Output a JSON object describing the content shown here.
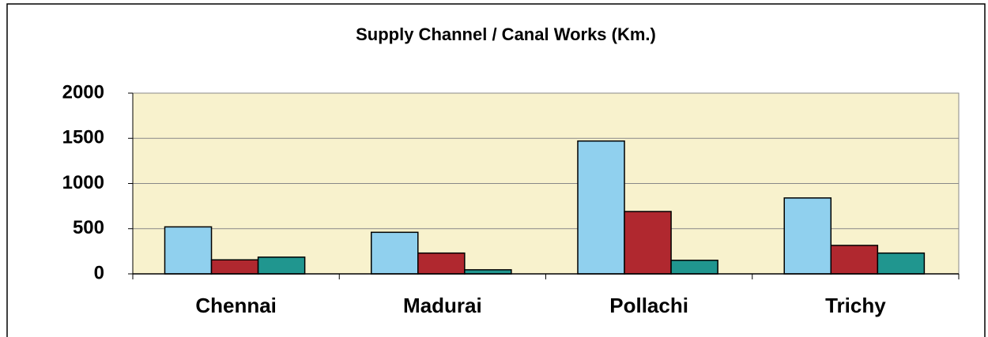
{
  "chart_data": {
    "type": "bar",
    "title": "Supply Channel / Canal Works (Km.)",
    "categories": [
      "Chennai",
      "Madurai",
      "Pollachi",
      "Trichy"
    ],
    "series": [
      {
        "color": "#90d0ee",
        "values": [
          520,
          460,
          1470,
          840
        ]
      },
      {
        "color": "#b0282f",
        "values": [
          155,
          230,
          690,
          315
        ]
      },
      {
        "color": "#20968f",
        "values": [
          185,
          45,
          150,
          230
        ]
      }
    ],
    "ylim": [
      0,
      2000
    ],
    "yticks": [
      0,
      500,
      1000,
      1500,
      2000
    ],
    "grid": true,
    "plot_background": "#f8f2cd"
  }
}
